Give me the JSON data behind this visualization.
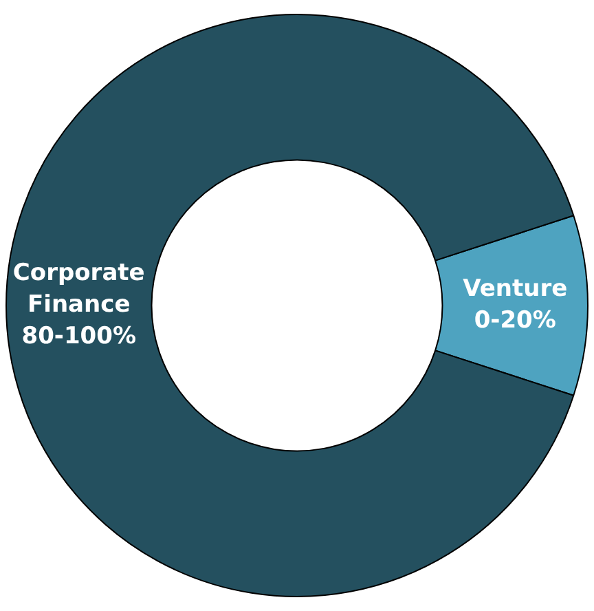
{
  "chart_data": {
    "type": "donut",
    "categories": [
      "Venture 0-20%",
      "Corporate Finance 80-100%"
    ],
    "values": [
      10,
      90
    ],
    "colors": [
      "#4ea3c0",
      "#24505f"
    ],
    "legend": false
  }
}
